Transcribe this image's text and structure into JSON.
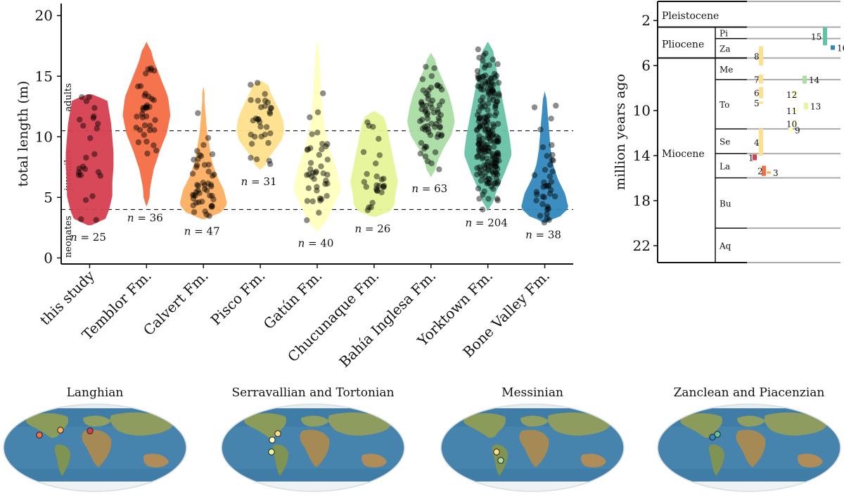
{
  "chart_data": [
    {
      "type": "violin",
      "ylabel": "total length (m)",
      "ylim": [
        -0.5,
        21
      ],
      "yticks": [
        0,
        5,
        10,
        15,
        20
      ],
      "categories": [
        "this study",
        "Temblor Fm.",
        "Calvert Fm.",
        "Pisco Fm.",
        "Gatún Fm.",
        "Chucunaque Fm.",
        "Bahía Inglesa Fm.",
        "Yorktown Fm.",
        "Bone Valley Fm."
      ],
      "colors": [
        "#d53e4f",
        "#f46d43",
        "#fdae61",
        "#fee08b",
        "#ffffbf",
        "#e6f598",
        "#abdda4",
        "#66c2a5",
        "#3288bd"
      ],
      "sample_sizes": [
        "n = 25",
        "n = 36",
        "n = 47",
        "n = 31",
        "n = 40",
        "n = 26",
        "n = 63",
        "n = 204",
        "n = 38"
      ],
      "ranges": [
        [
          2.7,
          13.5
        ],
        [
          4.3,
          17.8
        ],
        [
          3.2,
          14.1
        ],
        [
          7.3,
          14.6
        ],
        [
          2.2,
          17.8
        ],
        [
          3.4,
          12.1
        ],
        [
          6.7,
          16.9
        ],
        [
          3.9,
          17.8
        ],
        [
          2.9,
          13.7
        ]
      ],
      "density_profiles": [
        [
          0.55,
          0.8,
          0.95,
          0.95,
          1.0,
          1.0,
          0.95,
          0.9,
          0.8,
          0.7
        ],
        [
          0.1,
          0.15,
          0.3,
          0.55,
          0.85,
          1.0,
          0.9,
          0.6,
          0.3,
          0.1
        ],
        [
          0.5,
          1.0,
          0.85,
          0.55,
          0.35,
          0.25,
          0.15,
          0.1,
          0.05,
          0.05
        ],
        [
          0.15,
          0.3,
          0.6,
          0.9,
          1.0,
          0.95,
          0.8,
          0.6,
          0.4,
          0.3
        ],
        [
          0.2,
          0.6,
          1.0,
          0.8,
          0.5,
          0.3,
          0.2,
          0.15,
          0.1,
          0.05
        ],
        [
          0.5,
          0.85,
          0.9,
          1.0,
          0.9,
          0.8,
          0.7,
          0.6,
          0.5,
          0.3
        ],
        [
          0.1,
          0.25,
          0.5,
          0.85,
          1.0,
          0.9,
          0.75,
          0.5,
          0.25,
          0.1
        ],
        [
          0.1,
          0.35,
          0.7,
          1.0,
          0.9,
          0.75,
          0.6,
          0.45,
          0.3,
          0.15
        ],
        [
          0.35,
          1.0,
          0.85,
          0.55,
          0.35,
          0.25,
          0.2,
          0.15,
          0.1,
          0.05
        ]
      ],
      "thresholds": [
        4,
        10.5
      ],
      "zone_labels": [
        "neonates",
        "juveniles",
        "adults"
      ]
    },
    {
      "type": "timescale",
      "ylabel": "million years ago",
      "yticks": [
        2,
        6,
        10,
        14,
        18,
        22
      ],
      "ylim": [
        0.3,
        23.5
      ],
      "epochs": [
        {
          "name": "Pleistocene",
          "start": 0.3,
          "end": 2.58
        },
        {
          "name": "Pliocene",
          "start": 2.58,
          "end": 5.33
        },
        {
          "name": "Miocene",
          "start": 5.33,
          "end": 23.5
        }
      ],
      "ages": [
        {
          "name": "Pi",
          "start": 2.58,
          "end": 3.6
        },
        {
          "name": "Za",
          "start": 3.6,
          "end": 5.33
        },
        {
          "name": "Me",
          "start": 5.33,
          "end": 7.25
        },
        {
          "name": "To",
          "start": 7.25,
          "end": 11.63
        },
        {
          "name": "Se",
          "start": 11.63,
          "end": 13.82
        },
        {
          "name": "La",
          "start": 13.82,
          "end": 15.97
        },
        {
          "name": "Bu",
          "start": 15.97,
          "end": 20.44
        },
        {
          "name": "Aq",
          "start": 20.44,
          "end": 23.5
        }
      ],
      "occurrences": [
        {
          "label": "1",
          "start": 13.9,
          "end": 14.4,
          "color": "#d53e4f"
        },
        {
          "label": "2",
          "start": 14.9,
          "end": 15.8,
          "color": "#f46d43"
        },
        {
          "label": "3",
          "start": 15.4,
          "end": 15.6,
          "color": "#fdae61"
        },
        {
          "label": "4",
          "start": 11.6,
          "end": 14.0,
          "color": "#fee08b"
        },
        {
          "label": "5",
          "start": 9.2,
          "end": 9.4,
          "color": "#fee08b"
        },
        {
          "label": "6",
          "start": 7.9,
          "end": 8.9,
          "color": "#fee08b"
        },
        {
          "label": "7",
          "start": 6.8,
          "end": 7.6,
          "color": "#fee08b"
        },
        {
          "label": "8",
          "start": 4.3,
          "end": 6.0,
          "color": "#fee08b"
        },
        {
          "label": "9",
          "start": 11.5,
          "end": 11.9,
          "color": "#ffffbf"
        },
        {
          "label": "10",
          "start": 11.0,
          "end": 11.3,
          "color": "#ffffbf"
        },
        {
          "label": "11",
          "start": 9.8,
          "end": 10.2,
          "color": "#ffffbf"
        },
        {
          "label": "12",
          "start": 8.2,
          "end": 8.9,
          "color": "#ffffbf"
        },
        {
          "label": "13",
          "start": 9.3,
          "end": 9.9,
          "color": "#e6f598"
        },
        {
          "label": "14",
          "start": 6.9,
          "end": 7.6,
          "color": "#abdda4"
        },
        {
          "label": "15",
          "start": 2.6,
          "end": 4.2,
          "color": "#66c2a5"
        },
        {
          "label": "16",
          "start": 4.2,
          "end": 4.6,
          "color": "#3288bd"
        }
      ]
    }
  ],
  "maps": [
    {
      "title": "Langhian",
      "points": [
        {
          "color": "#d53e4f"
        },
        {
          "color": "#f46d43"
        },
        {
          "color": "#fdae61"
        }
      ]
    },
    {
      "title": "Serravallian and Tortonian",
      "points": [
        {
          "color": "#fee08b"
        },
        {
          "color": "#ffffbf"
        },
        {
          "color": "#e6f598"
        }
      ]
    },
    {
      "title": "Messinian",
      "points": [
        {
          "color": "#fee08b"
        },
        {
          "color": "#abdda4"
        }
      ]
    },
    {
      "title": "Zanclean and Piacenzian",
      "points": [
        {
          "color": "#66c2a5"
        },
        {
          "color": "#3288bd"
        }
      ]
    }
  ]
}
